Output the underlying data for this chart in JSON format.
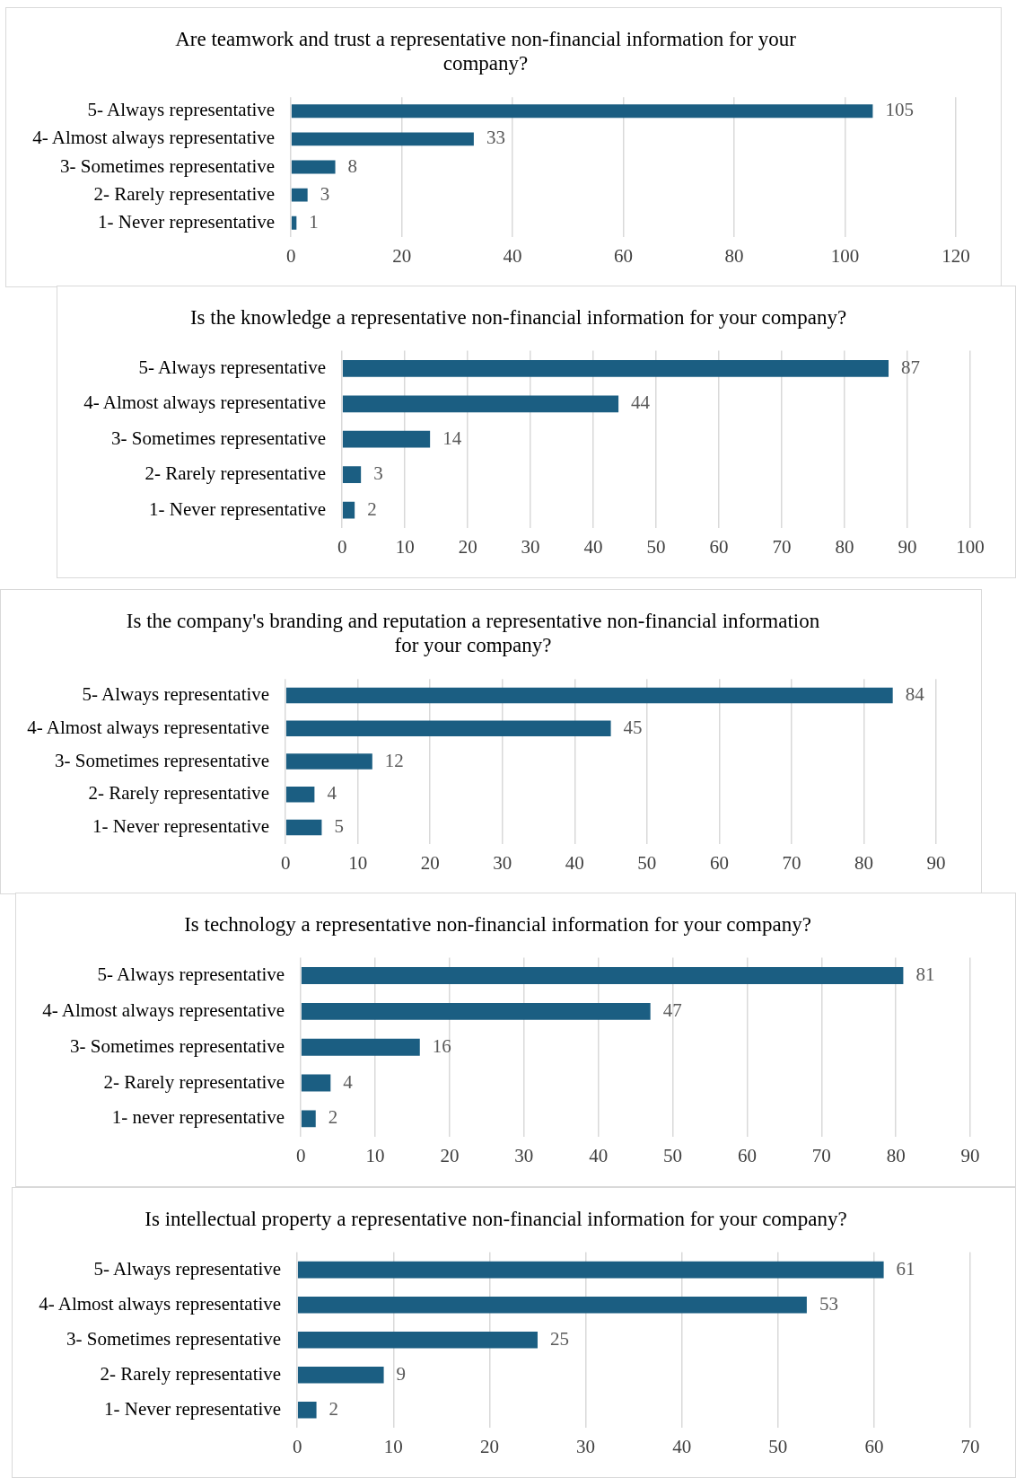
{
  "chart_data": [
    {
      "type": "bar",
      "orientation": "horizontal",
      "title": "Are teamwork and trust a representative non-financial information for your company?",
      "categories": [
        "5- Always representative",
        "4- Almost always representative",
        "3- Sometimes representative",
        "2- Rarely representative",
        "1- Never representative"
      ],
      "values": [
        105,
        33,
        8,
        3,
        1
      ],
      "color": "#1b5e82",
      "xlim": [
        0,
        120
      ],
      "xticks": [
        0,
        20,
        40,
        60,
        80,
        100,
        120
      ],
      "grid": "x",
      "data_labels": true
    },
    {
      "type": "bar",
      "orientation": "horizontal",
      "title": "Is the knowledge a representative non-financial information for your company?",
      "categories": [
        "5- Always representative",
        "4- Almost always representative",
        "3- Sometimes representative",
        "2- Rarely representative",
        "1- Never representative"
      ],
      "values": [
        87,
        44,
        14,
        3,
        2
      ],
      "color": "#1b5e82",
      "xlim": [
        0,
        100
      ],
      "xticks": [
        0,
        10,
        20,
        30,
        40,
        50,
        60,
        70,
        80,
        90,
        100
      ],
      "grid": "x",
      "data_labels": true
    },
    {
      "type": "bar",
      "orientation": "horizontal",
      "title": "Is the company's branding and reputation a representative non-financial information for your company?",
      "categories": [
        "5- Always representative",
        "4- Almost always representative",
        "3- Sometimes representative",
        "2- Rarely representative",
        "1- Never representative"
      ],
      "values": [
        84,
        45,
        12,
        4,
        5
      ],
      "color": "#1b5e82",
      "xlim": [
        0,
        90
      ],
      "xticks": [
        0,
        10,
        20,
        30,
        40,
        50,
        60,
        70,
        80,
        90
      ],
      "grid": "x",
      "data_labels": true
    },
    {
      "type": "bar",
      "orientation": "horizontal",
      "title": "Is technology a representative non-financial information for your company?",
      "categories": [
        "5- Always representative",
        "4- Almost always representative",
        "3- Sometimes representative",
        "2- Rarely representative",
        "1- never representative"
      ],
      "values": [
        81,
        47,
        16,
        4,
        2
      ],
      "color": "#1b5e82",
      "xlim": [
        0,
        90
      ],
      "xticks": [
        0,
        10,
        20,
        30,
        40,
        50,
        60,
        70,
        80,
        90
      ],
      "grid": "x",
      "data_labels": true
    },
    {
      "type": "bar",
      "orientation": "horizontal",
      "title": "Is intellectual property a representative non-financial information for your company?",
      "categories": [
        "5- Always representative",
        "4- Almost always representative",
        "3- Sometimes representative",
        "2- Rarely representative",
        "1- Never representative"
      ],
      "values": [
        61,
        53,
        25,
        9,
        2
      ],
      "color": "#1b5e82",
      "xlim": [
        0,
        70
      ],
      "xticks": [
        0,
        10,
        20,
        30,
        40,
        50,
        60,
        70
      ],
      "grid": "x",
      "data_labels": true
    }
  ]
}
